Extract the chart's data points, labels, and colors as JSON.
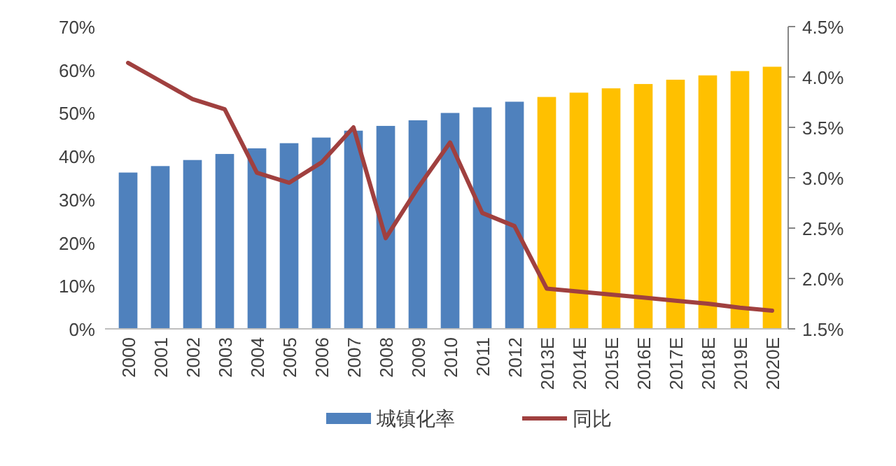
{
  "chart_data": {
    "type": "bar",
    "categories": [
      "2000",
      "2001",
      "2002",
      "2003",
      "2004",
      "2005",
      "2006",
      "2007",
      "2008",
      "2009",
      "2010",
      "2011",
      "2012",
      "2013E",
      "2014E",
      "2015E",
      "2016E",
      "2017E",
      "2018E",
      "2019E",
      "2020E"
    ],
    "series": [
      {
        "name": "城镇化率",
        "color": "#4f81bd",
        "colors": [
          "#4f81bd",
          "#4f81bd",
          "#4f81bd",
          "#4f81bd",
          "#4f81bd",
          "#4f81bd",
          "#4f81bd",
          "#4f81bd",
          "#4f81bd",
          "#4f81bd",
          "#4f81bd",
          "#4f81bd",
          "#4f81bd",
          "#ffc000",
          "#ffc000",
          "#ffc000",
          "#ffc000",
          "#ffc000",
          "#ffc000",
          "#ffc000",
          "#ffc000"
        ],
        "values": [
          36.2,
          37.7,
          39.1,
          40.5,
          41.8,
          43.0,
          44.3,
          45.9,
          47.0,
          48.3,
          50.0,
          51.3,
          52.6,
          53.7,
          54.7,
          55.7,
          56.7,
          57.7,
          58.7,
          59.7,
          60.7
        ]
      },
      {
        "name": "同比",
        "type": "line",
        "axis": "y2",
        "color": "#a0403f",
        "values": [
          4.14,
          3.96,
          3.78,
          3.68,
          3.05,
          2.95,
          3.15,
          3.5,
          2.4,
          2.9,
          3.35,
          2.65,
          2.52,
          1.9,
          1.87,
          1.84,
          1.81,
          1.78,
          1.75,
          1.71,
          1.68
        ]
      }
    ],
    "ylim": [
      0,
      70
    ],
    "yticks": [
      {
        "value": 0,
        "label": "0%"
      },
      {
        "value": 10,
        "label": "10%"
      },
      {
        "value": 20,
        "label": "20%"
      },
      {
        "value": 30,
        "label": "30%"
      },
      {
        "value": 40,
        "label": "40%"
      },
      {
        "value": 50,
        "label": "50%"
      },
      {
        "value": 60,
        "label": "60%"
      },
      {
        "value": 70,
        "label": "70%"
      }
    ],
    "y2lim": [
      1.5,
      4.5
    ],
    "y2ticks": [
      {
        "value": 1.5,
        "label": "1.5%"
      },
      {
        "value": 2.0,
        "label": "2.0%"
      },
      {
        "value": 2.5,
        "label": "2.5%"
      },
      {
        "value": 3.0,
        "label": "3.0%"
      },
      {
        "value": 3.5,
        "label": "3.5%"
      },
      {
        "value": 4.0,
        "label": "4.0%"
      },
      {
        "value": 4.5,
        "label": "4.5%"
      }
    ],
    "legend": "bottom",
    "grid": false,
    "marker": "none",
    "line_style": "solid"
  }
}
